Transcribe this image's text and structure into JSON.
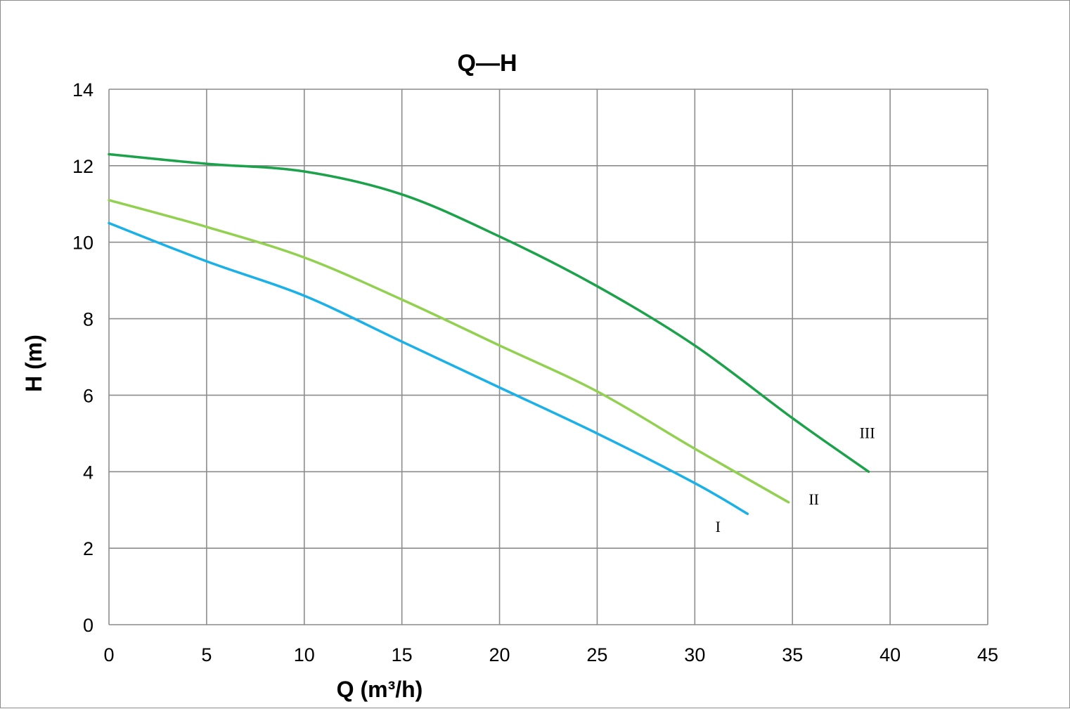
{
  "chart_data": {
    "type": "line",
    "title": "Q—H",
    "xlabel": "Q (m³/h)",
    "ylabel": "H (m)",
    "xlim": [
      0,
      45
    ],
    "ylim": [
      0,
      14
    ],
    "xticks": [
      "0",
      "5",
      "10",
      "15",
      "20",
      "25",
      "30",
      "35",
      "40",
      "45"
    ],
    "yticks": [
      "0",
      "2",
      "4",
      "6",
      "8",
      "10",
      "12",
      "14"
    ],
    "grid": true,
    "legend": "none",
    "series": [
      {
        "name": "I",
        "color": "#1ab0e8",
        "x": [
          0,
          5,
          10,
          15,
          20,
          25,
          30,
          32.7
        ],
        "y": [
          10.5,
          9.5,
          8.6,
          7.4,
          6.2,
          5.0,
          3.7,
          2.9
        ]
      },
      {
        "name": "II",
        "color": "#92d050",
        "x": [
          0,
          5,
          10,
          15,
          20,
          25,
          30,
          34.8
        ],
        "y": [
          11.1,
          10.4,
          9.6,
          8.5,
          7.3,
          6.1,
          4.6,
          3.2
        ]
      },
      {
        "name": "III",
        "color": "#1ca24a",
        "x": [
          0,
          5,
          10,
          15,
          20,
          25,
          30,
          35,
          38.9
        ],
        "y": [
          12.3,
          12.05,
          11.85,
          11.25,
          10.15,
          8.85,
          7.3,
          5.4,
          4.0
        ]
      }
    ]
  }
}
